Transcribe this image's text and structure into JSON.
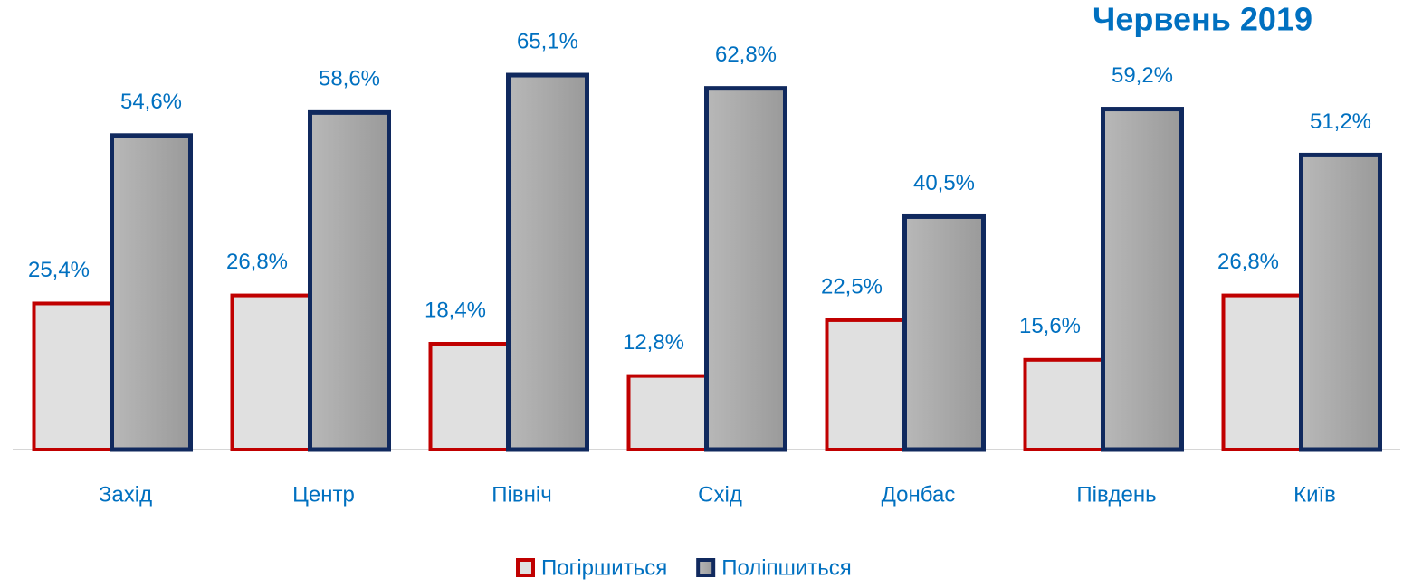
{
  "chart_data": {
    "type": "bar",
    "subtitle": "Червень  2019",
    "categories": [
      "Захід",
      "Центр",
      "Північ",
      "Схід",
      "Донбас",
      "Південь",
      "Київ"
    ],
    "series": [
      {
        "name": "Погіршиться",
        "color": "#c00000",
        "fill": "#e0e0e0",
        "values": [
          25.4,
          26.8,
          18.4,
          12.8,
          22.5,
          15.6,
          26.8
        ],
        "value_labels": [
          "25,4%",
          "26,8%",
          "18,4%",
          "12,8%",
          "22,5%",
          "15,6%",
          "26,8%"
        ]
      },
      {
        "name": "Поліпшиться",
        "color": "#10295e",
        "fill": "#a8a8a8",
        "values": [
          54.6,
          58.6,
          65.1,
          62.8,
          40.5,
          59.2,
          51.2
        ],
        "value_labels": [
          "54,6%",
          "58,6%",
          "65,1%",
          "62,8%",
          "40,5%",
          "59,2%",
          "51,2%"
        ]
      }
    ],
    "ylim": [
      0,
      78
    ],
    "legend": "bottom"
  }
}
